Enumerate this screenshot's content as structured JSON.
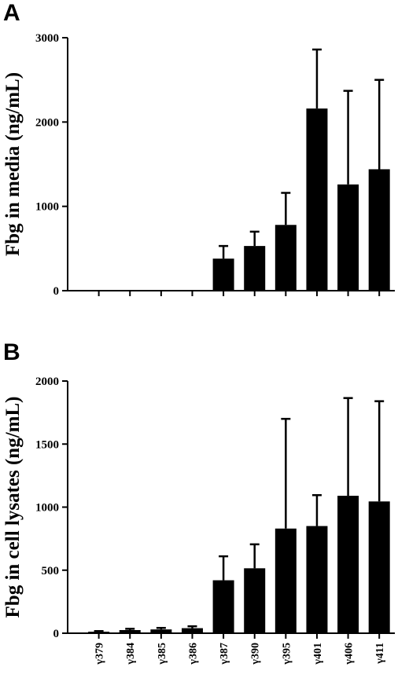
{
  "chart_data": [
    {
      "panel": "A",
      "type": "bar",
      "ylabel": "Fbg in media (ng/mL)",
      "ylim": [
        0,
        3000
      ],
      "yticks": [
        0,
        1000,
        2000,
        3000
      ],
      "categories": [
        "γ379",
        "γ384",
        "γ385",
        "γ386",
        "γ387",
        "γ390",
        "γ395",
        "γ401",
        "γ406",
        "γ411"
      ],
      "values": [
        0,
        0,
        0,
        0,
        380,
        530,
        780,
        2160,
        1260,
        1440
      ],
      "errors": [
        0,
        0,
        0,
        0,
        150,
        170,
        380,
        700,
        1110,
        1060
      ],
      "show_xlabels": false,
      "grid": false
    },
    {
      "panel": "B",
      "type": "bar",
      "ylabel": "Fbg in cell lysates (ng/mL)",
      "ylim": [
        0,
        2000
      ],
      "yticks": [
        0,
        500,
        1000,
        1500,
        2000
      ],
      "categories": [
        "γ379",
        "γ384",
        "γ385",
        "γ386",
        "γ387",
        "γ390",
        "γ395",
        "γ401",
        "γ406",
        "γ411"
      ],
      "values": [
        12,
        25,
        30,
        40,
        420,
        515,
        830,
        850,
        1090,
        1045
      ],
      "errors": [
        5,
        10,
        12,
        15,
        190,
        190,
        870,
        245,
        775,
        795
      ],
      "show_xlabels": true,
      "grid": false
    }
  ],
  "colors": {
    "bar": "#000000",
    "axis": "#000000",
    "background": "#ffffff"
  }
}
